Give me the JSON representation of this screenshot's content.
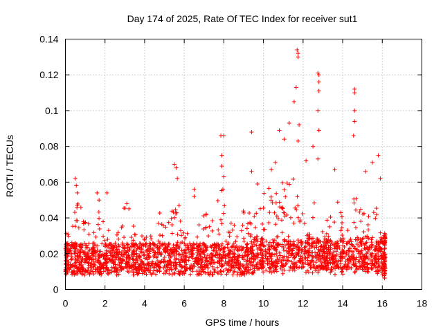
{
  "chart_data": {
    "type": "scatter",
    "title": "Day 174 of 2025, Rate Of TEC Index for receiver sut1",
    "xlabel": "GPS time / hours",
    "ylabel": "ROTI / TECUs",
    "xlim": [
      0,
      18
    ],
    "ylim": [
      0,
      0.14
    ],
    "grid": true,
    "marker": "plus",
    "color": "#ff0000",
    "x_ticks": [
      0,
      2,
      4,
      6,
      8,
      10,
      12,
      14,
      16,
      18
    ],
    "x_tick_labels": [
      "0",
      "2",
      "4",
      "6",
      "8",
      "10",
      "12",
      "14",
      "16",
      "18"
    ],
    "y_ticks": [
      0,
      0.02,
      0.04,
      0.06,
      0.08,
      0.1,
      0.12,
      0.14
    ],
    "y_tick_labels": [
      "0",
      "0.02",
      "0.04",
      "0.06",
      "0.08",
      "0.1",
      "0.12",
      "0.14"
    ],
    "data_range_hours": [
      0,
      16.15
    ],
    "series": [
      {
        "name": "ROTI",
        "notable_points": [
          {
            "x": 0.5,
            "y": 0.062
          },
          {
            "x": 0.55,
            "y": 0.058
          },
          {
            "x": 0.6,
            "y": 0.054
          },
          {
            "x": 0.6,
            "y": 0.047
          },
          {
            "x": 1.6,
            "y": 0.054
          },
          {
            "x": 1.7,
            "y": 0.05
          },
          {
            "x": 2.1,
            "y": 0.054
          },
          {
            "x": 3.1,
            "y": 0.048
          },
          {
            "x": 4.7,
            "y": 0.037
          },
          {
            "x": 5.5,
            "y": 0.07
          },
          {
            "x": 5.6,
            "y": 0.068
          },
          {
            "x": 5.65,
            "y": 0.062
          },
          {
            "x": 6.5,
            "y": 0.056
          },
          {
            "x": 6.5,
            "y": 0.052
          },
          {
            "x": 7.85,
            "y": 0.086
          },
          {
            "x": 8.0,
            "y": 0.086
          },
          {
            "x": 7.9,
            "y": 0.075
          },
          {
            "x": 7.9,
            "y": 0.069
          },
          {
            "x": 8.0,
            "y": 0.063
          },
          {
            "x": 9.4,
            "y": 0.088
          },
          {
            "x": 9.4,
            "y": 0.066
          },
          {
            "x": 9.7,
            "y": 0.059
          },
          {
            "x": 10.4,
            "y": 0.067
          },
          {
            "x": 10.6,
            "y": 0.071
          },
          {
            "x": 10.8,
            "y": 0.089
          },
          {
            "x": 11.05,
            "y": 0.084
          },
          {
            "x": 11.3,
            "y": 0.093
          },
          {
            "x": 11.55,
            "y": 0.105
          },
          {
            "x": 11.65,
            "y": 0.113
          },
          {
            "x": 11.7,
            "y": 0.134
          },
          {
            "x": 11.75,
            "y": 0.132
          },
          {
            "x": 11.75,
            "y": 0.13
          },
          {
            "x": 11.8,
            "y": 0.092
          },
          {
            "x": 11.75,
            "y": 0.083
          },
          {
            "x": 12.15,
            "y": 0.072
          },
          {
            "x": 12.5,
            "y": 0.08
          },
          {
            "x": 12.75,
            "y": 0.121
          },
          {
            "x": 12.8,
            "y": 0.12
          },
          {
            "x": 12.8,
            "y": 0.116
          },
          {
            "x": 12.8,
            "y": 0.111
          },
          {
            "x": 12.75,
            "y": 0.1
          },
          {
            "x": 12.8,
            "y": 0.089
          },
          {
            "x": 12.75,
            "y": 0.073
          },
          {
            "x": 13.6,
            "y": 0.067
          },
          {
            "x": 14.6,
            "y": 0.112
          },
          {
            "x": 14.6,
            "y": 0.11
          },
          {
            "x": 14.6,
            "y": 0.1
          },
          {
            "x": 14.6,
            "y": 0.094
          },
          {
            "x": 14.55,
            "y": 0.086
          },
          {
            "x": 15.15,
            "y": 0.066
          },
          {
            "x": 15.5,
            "y": 0.071
          },
          {
            "x": 15.8,
            "y": 0.075
          },
          {
            "x": 15.9,
            "y": 0.062
          }
        ],
        "dense_band": {
          "typical_range": [
            0.005,
            0.035
          ],
          "typical_value": 0.018
        }
      }
    ]
  }
}
